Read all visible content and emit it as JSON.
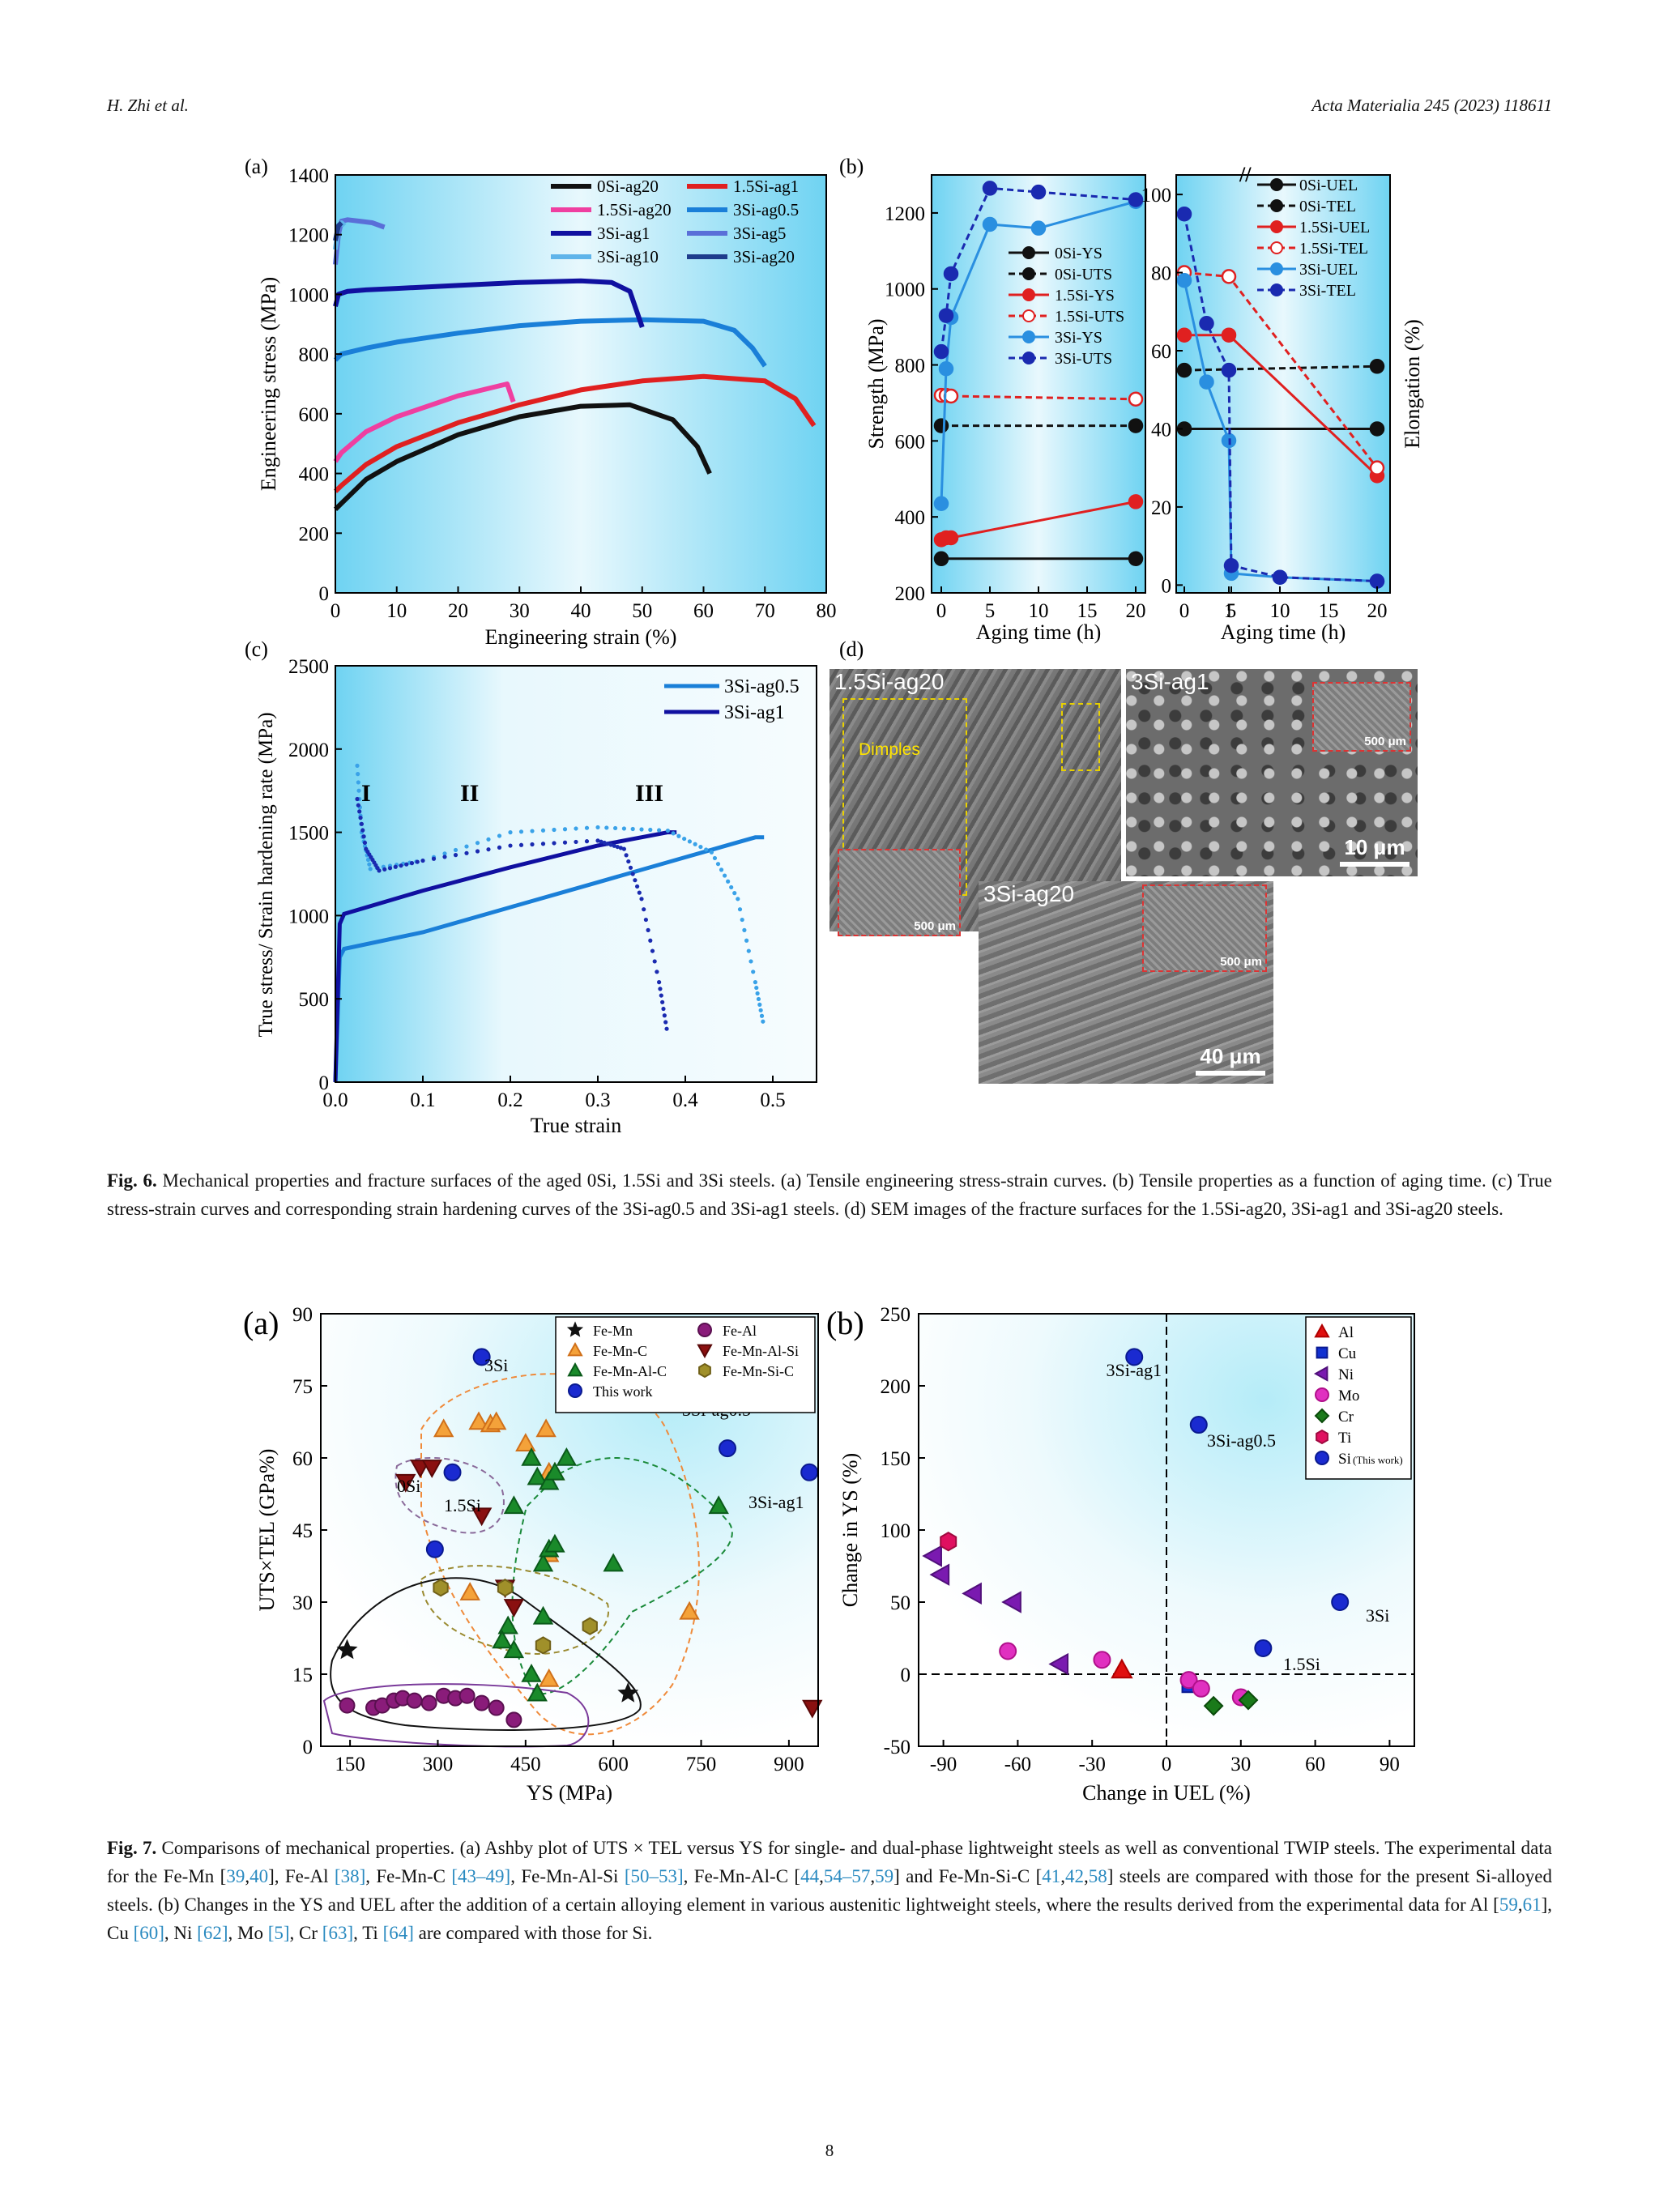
{
  "header": {
    "authors": "H. Zhi et al.",
    "journal": "Acta Materialia 245 (2023) 118611"
  },
  "fig6": {
    "caption_label": "Fig. 6.",
    "caption_text": "Mechanical properties and fracture surfaces of the aged 0Si, 1.5Si and 3Si steels. (a) Tensile engineering stress-strain curves. (b) Tensile properties as a function of aging time. (c) True stress-strain curves and corresponding strain hardening curves of the 3Si-ag0.5 and 3Si-ag1 steels. (d) SEM images of the fracture surfaces for the 1.5Si-ag20, 3Si-ag1 and 3Si-ag20 steels.",
    "panel_a": {
      "label": "(a)",
      "xlabel": "Engineering strain (%)",
      "ylabel": "Engineering stress (MPa)",
      "xticks": [
        "0",
        "10",
        "20",
        "30",
        "40",
        "50",
        "60",
        "70",
        "80"
      ],
      "yticks": [
        "0",
        "200",
        "400",
        "600",
        "800",
        "1000",
        "1200",
        "1400"
      ],
      "legend": [
        {
          "name": "0Si-ag20",
          "color": "#111111"
        },
        {
          "name": "1.5Si-ag1",
          "color": "#e02020"
        },
        {
          "name": "1.5Si-ag20",
          "color": "#ef3fa0"
        },
        {
          "name": "3Si-ag0.5",
          "color": "#1a7fd8"
        },
        {
          "name": "3Si-ag1",
          "color": "#1010a0"
        },
        {
          "name": "3Si-ag5",
          "color": "#5a6fd8"
        },
        {
          "name": "3Si-ag10",
          "color": "#5fb4ea"
        },
        {
          "name": "3Si-ag20",
          "color": "#1e3c8c"
        }
      ]
    },
    "panel_b": {
      "label": "(b)",
      "xlabel": "Aging time (h)",
      "ylabel_left": "Strength (MPa)",
      "ylabel_right": "Elongation (%)",
      "left_xticks": [
        "0",
        "5",
        "10",
        "15",
        "20"
      ],
      "left_yticks": [
        "200",
        "400",
        "600",
        "800",
        "1000",
        "1200"
      ],
      "right_xticks": [
        "0",
        "1",
        "5",
        "10",
        "15",
        "20"
      ],
      "right_yticks": [
        "0",
        "20",
        "40",
        "60",
        "80",
        "100"
      ],
      "left_legend": [
        "0Si-YS",
        "0Si-UTS",
        "1.5Si-YS",
        "1.5Si-UTS",
        "3Si-YS",
        "3Si-UTS"
      ],
      "right_legend": [
        "0Si-UEL",
        "0Si-TEL",
        "1.5Si-UEL",
        "1.5Si-TEL",
        "3Si-UEL",
        "3Si-TEL"
      ]
    },
    "panel_c": {
      "label": "(c)",
      "xlabel": "True strain",
      "ylabel": "True stress/ Strain hardening rate (MPa)",
      "xticks": [
        "0.0",
        "0.1",
        "0.2",
        "0.3",
        "0.4",
        "0.5"
      ],
      "yticks": [
        "0",
        "500",
        "1000",
        "1500",
        "2000",
        "2500"
      ],
      "legend": [
        "3Si-ag0.5",
        "3Si-ag1"
      ],
      "stages": [
        "I",
        "II",
        "III"
      ]
    },
    "panel_d": {
      "label": "(d)",
      "img1": "1.5Si-ag20",
      "img1_note": "Dimples",
      "img2": "3Si-ag1",
      "img3": "3Si-ag20",
      "scale_40": "40 μm",
      "scale_10": "10 μm",
      "scale_500": "500 μm"
    }
  },
  "fig7": {
    "caption_label": "Fig. 7.",
    "caption_text_1": "Comparisons of mechanical properties. (a) Ashby plot of UTS × TEL versus YS for single- and dual-phase lightweight steels as well as conventional TWIP steels. The experimental data for the Fe-Mn [",
    "panel_a": {
      "label": "(a)",
      "xlabel": "YS (MPa)",
      "ylabel": "UTS×TEL (GPa%)",
      "xticks": [
        "150",
        "300",
        "450",
        "600",
        "750",
        "900"
      ],
      "yticks": [
        "0",
        "15",
        "30",
        "45",
        "60",
        "75",
        "90"
      ],
      "legend": [
        "Fe-Mn",
        "Fe-Al",
        "Fe-Mn-C",
        "Fe-Mn-Al-Si",
        "Fe-Mn-Al-C",
        "Fe-Mn-Si-C",
        "This work"
      ],
      "annotations": [
        "3Si",
        "3Si-ag0.5",
        "3Si-ag1",
        "1.5Si",
        "0Si"
      ]
    },
    "panel_b": {
      "label": "(b)",
      "xlabel": "Change in UEL (%)",
      "ylabel": "Change in YS (%)",
      "xticks": [
        "-90",
        "-60",
        "-30",
        "0",
        "30",
        "60",
        "90"
      ],
      "yticks": [
        "-50",
        "0",
        "50",
        "100",
        "150",
        "200",
        "250"
      ],
      "legend": [
        "Al",
        "Cu",
        "Ni",
        "Mo",
        "Cr",
        "Ti",
        "Si"
      ],
      "legend_si_note": "(This work)",
      "annotations": [
        "3Si-ag1",
        "3Si-ag0.5",
        "3Si",
        "1.5Si"
      ]
    }
  },
  "page_number": "8",
  "chart_data": [
    {
      "type": "line",
      "title": "",
      "xlabel": "Engineering strain (%)",
      "ylabel": "Engineering stress (MPa)",
      "xlim": [
        0,
        80
      ],
      "ylim": [
        0,
        1400
      ],
      "series": [
        {
          "name": "0Si-ag20",
          "x": [
            0,
            1,
            5,
            10,
            20,
            30,
            40,
            48,
            55,
            59,
            61
          ],
          "y": [
            280,
            300,
            380,
            440,
            530,
            590,
            625,
            630,
            580,
            490,
            400
          ]
        },
        {
          "name": "1.5Si-ag1",
          "x": [
            0,
            1,
            5,
            10,
            20,
            30,
            40,
            50,
            60,
            70,
            75,
            78
          ],
          "y": [
            340,
            360,
            430,
            490,
            570,
            630,
            680,
            710,
            725,
            710,
            650,
            560
          ]
        },
        {
          "name": "1.5Si-ag20",
          "x": [
            0,
            1,
            5,
            10,
            20,
            28,
            29
          ],
          "y": [
            440,
            470,
            540,
            590,
            660,
            700,
            640
          ]
        },
        {
          "name": "3Si-ag0.5",
          "x": [
            0,
            1,
            5,
            10,
            20,
            30,
            40,
            50,
            60,
            65,
            68,
            70
          ],
          "y": [
            780,
            800,
            820,
            840,
            870,
            895,
            910,
            915,
            910,
            880,
            820,
            760
          ]
        },
        {
          "name": "3Si-ag1",
          "x": [
            0,
            0.5,
            2,
            5,
            10,
            20,
            30,
            40,
            45,
            48,
            50
          ],
          "y": [
            960,
            1000,
            1010,
            1015,
            1020,
            1030,
            1040,
            1045,
            1040,
            1010,
            890
          ]
        },
        {
          "name": "3Si-ag5",
          "x": [
            0,
            0.5,
            1,
            2,
            4,
            6,
            8
          ],
          "y": [
            1100,
            1200,
            1245,
            1250,
            1245,
            1240,
            1225
          ]
        },
        {
          "name": "3Si-ag10",
          "x": [
            0,
            0.5,
            1,
            1.5
          ],
          "y": [
            1150,
            1230,
            1240,
            1230
          ]
        },
        {
          "name": "3Si-ag20",
          "x": [
            0,
            0.5,
            1
          ],
          "y": [
            1180,
            1230,
            1240
          ]
        }
      ]
    },
    {
      "type": "line",
      "title": "",
      "xlabel": "Aging time (h)",
      "ylabel": "Strength (MPa)",
      "xlim": [
        -1,
        21
      ],
      "ylim": [
        200,
        1300
      ],
      "series": [
        {
          "name": "0Si-YS",
          "x": [
            0,
            20
          ],
          "y": [
            290,
            290
          ]
        },
        {
          "name": "0Si-UTS",
          "x": [
            0,
            20
          ],
          "y": [
            640,
            640
          ]
        },
        {
          "name": "1.5Si-YS",
          "x": [
            0,
            0.5,
            1,
            20
          ],
          "y": [
            340,
            345,
            345,
            440
          ]
        },
        {
          "name": "1.5Si-UTS",
          "x": [
            0,
            0.5,
            1,
            20
          ],
          "y": [
            720,
            720,
            718,
            710
          ]
        },
        {
          "name": "3Si-YS",
          "x": [
            0,
            0.5,
            1,
            5,
            10,
            20
          ],
          "y": [
            435,
            790,
            925,
            1170,
            1160,
            1230
          ]
        },
        {
          "name": "3Si-UTS",
          "x": [
            0,
            0.5,
            1,
            5,
            10,
            20
          ],
          "y": [
            835,
            930,
            1040,
            1265,
            1255,
            1235
          ]
        }
      ]
    },
    {
      "type": "line",
      "title": "",
      "xlabel": "Aging time (h)",
      "ylabel": "Elongation (%)",
      "ylim": [
        0,
        105
      ],
      "series": [
        {
          "name": "0Si-UEL",
          "x": [
            0,
            20
          ],
          "y": [
            40,
            40
          ]
        },
        {
          "name": "0Si-TEL",
          "x": [
            0,
            20
          ],
          "y": [
            55,
            56
          ]
        },
        {
          "name": "1.5Si-UEL",
          "x": [
            0,
            1,
            20
          ],
          "y": [
            64,
            64,
            28
          ]
        },
        {
          "name": "1.5Si-TEL",
          "x": [
            0,
            1,
            20
          ],
          "y": [
            80,
            79,
            30
          ]
        },
        {
          "name": "3Si-UEL",
          "x": [
            0,
            0.5,
            1,
            5,
            10,
            20
          ],
          "y": [
            78,
            52,
            37,
            3,
            2,
            1
          ]
        },
        {
          "name": "3Si-TEL",
          "x": [
            0,
            0.5,
            1,
            5,
            10,
            20
          ],
          "y": [
            95,
            67,
            55,
            5,
            2,
            1
          ]
        }
      ]
    },
    {
      "type": "line",
      "title": "",
      "xlabel": "True strain",
      "ylabel": "True stress/ Strain hardening rate (MPa)",
      "xlim": [
        0,
        0.55
      ],
      "ylim": [
        0,
        2500
      ],
      "series": [
        {
          "name": "3Si-ag0.5",
          "x": [
            0,
            0.005,
            0.01,
            0.1,
            0.2,
            0.3,
            0.4,
            0.48,
            0.49
          ],
          "y": [
            0,
            750,
            800,
            900,
            1050,
            1200,
            1350,
            1470,
            1470
          ]
        },
        {
          "name": "3Si-ag1",
          "x": [
            0,
            0.005,
            0.01,
            0.1,
            0.2,
            0.3,
            0.38,
            0.39
          ],
          "y": [
            0,
            950,
            1010,
            1150,
            1290,
            1420,
            1500,
            1500
          ]
        }
      ]
    },
    {
      "type": "scatter",
      "title": "",
      "xlabel": "YS (MPa)",
      "ylabel": "UTS×TEL (GPa%)",
      "xlim": [
        100,
        950
      ],
      "ylim": [
        0,
        90
      ],
      "series": [
        {
          "name": "Fe-Mn",
          "x": [
            145,
            625
          ],
          "y": [
            20,
            11
          ]
        },
        {
          "name": "Fe-Al",
          "x": [
            145,
            190,
            205,
            225,
            240,
            260,
            285,
            310,
            330,
            350,
            375,
            400,
            430
          ],
          "y": [
            8.5,
            8,
            8.5,
            9.5,
            10,
            9.5,
            9,
            10.5,
            10,
            10.5,
            9,
            8,
            5.5
          ]
        },
        {
          "name": "Fe-Mn-C",
          "x": [
            310,
            370,
            390,
            400,
            450,
            485,
            490,
            500,
            490,
            730,
            490,
            355
          ],
          "y": [
            66,
            67.5,
            67,
            67.5,
            63,
            66,
            57,
            57,
            14,
            28,
            40,
            32
          ]
        },
        {
          "name": "Fe-Mn-Al-C",
          "x": [
            430,
            460,
            470,
            490,
            500,
            520,
            480,
            490,
            500,
            480,
            460,
            430,
            420,
            410,
            600,
            780,
            470
          ],
          "y": [
            50,
            60,
            56,
            55,
            57,
            60,
            38,
            41,
            42,
            27,
            15,
            20,
            25,
            22,
            38,
            50,
            11
          ]
        },
        {
          "name": "Fe-Mn-Al-Si",
          "x": [
            245,
            270,
            290,
            375,
            415,
            430,
            940
          ],
          "y": [
            55,
            58,
            58,
            48,
            33,
            29,
            8
          ]
        },
        {
          "name": "Fe-Mn-Si-C",
          "x": [
            305,
            415,
            480,
            560
          ],
          "y": [
            33,
            33,
            21,
            25
          ]
        },
        {
          "name": "This work",
          "x": [
            375,
            325,
            295,
            795,
            935
          ],
          "y": [
            81,
            57,
            41,
            62,
            57
          ]
        }
      ]
    },
    {
      "type": "scatter",
      "title": "",
      "xlabel": "Change in UEL (%)",
      "ylabel": "Change in YS (%)",
      "xlim": [
        -100,
        100
      ],
      "ylim": [
        -50,
        250
      ],
      "series": [
        {
          "name": "Al",
          "x": [
            -18
          ],
          "y": [
            3
          ]
        },
        {
          "name": "Cu",
          "x": [
            9
          ],
          "y": [
            -8
          ]
        },
        {
          "name": "Ni",
          "x": [
            -94,
            -91,
            -78,
            -62,
            -43
          ],
          "y": [
            82,
            69,
            56,
            50,
            7
          ]
        },
        {
          "name": "Mo",
          "x": [
            -64,
            -26,
            9,
            14,
            30
          ],
          "y": [
            16,
            10,
            -4,
            -10,
            -16
          ]
        },
        {
          "name": "Cr",
          "x": [
            19,
            33
          ],
          "y": [
            -22,
            -18
          ]
        },
        {
          "name": "Ti",
          "x": [
            -88
          ],
          "y": [
            92
          ]
        },
        {
          "name": "Si",
          "x": [
            -13,
            13,
            70,
            39
          ],
          "y": [
            220,
            173,
            50,
            18
          ]
        }
      ]
    }
  ]
}
